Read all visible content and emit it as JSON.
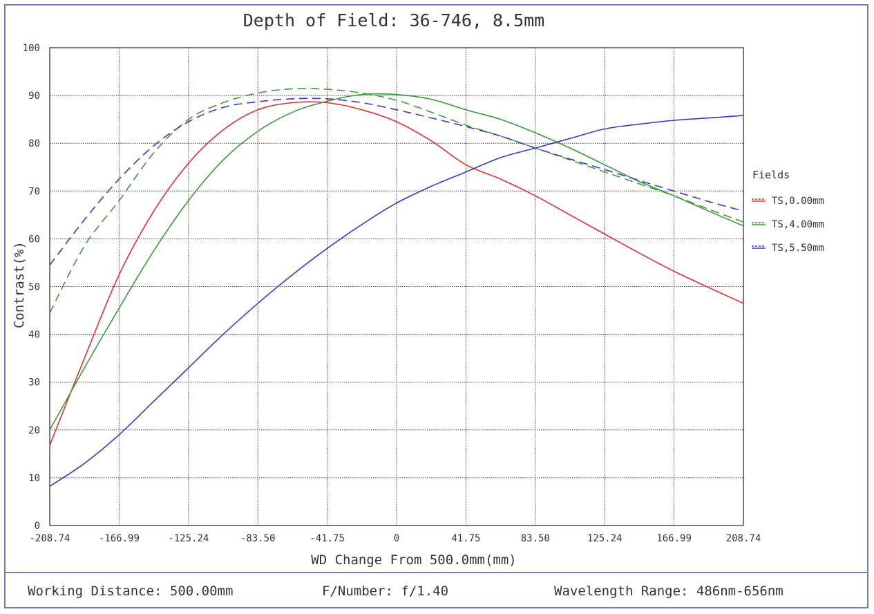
{
  "chart_data": {
    "type": "line",
    "title": "Depth of Field: 36-746, 8.5mm",
    "xlabel": "WD Change From 500.0mm(mm)",
    "ylabel": "Contrast(%)",
    "xlim": [
      -208.74,
      208.74
    ],
    "ylim": [
      0,
      100
    ],
    "x_ticks": [
      "-208.74",
      "-166.99",
      "-125.24",
      "-83.50",
      "-41.75",
      "0",
      "41.75",
      "83.50",
      "125.24",
      "166.99",
      "208.74"
    ],
    "y_ticks": [
      "0",
      "10",
      "20",
      "30",
      "40",
      "50",
      "60",
      "70",
      "80",
      "90",
      "100"
    ],
    "grid": true,
    "legend_title": "Fields",
    "legend_position": "right",
    "series": [
      {
        "name": "TS,0.00mm",
        "color": "#e03030",
        "style": "solid",
        "x": [
          -208.74,
          -187.87,
          -166.99,
          -146.12,
          -125.24,
          -104.37,
          -83.5,
          -62.62,
          -41.75,
          -20.87,
          0,
          20.87,
          41.75,
          62.62,
          83.5,
          104.37,
          125.24,
          146.12,
          166.99,
          187.87,
          208.74
        ],
        "y": [
          16.8,
          35.0,
          52.5,
          65.8,
          75.8,
          82.8,
          87.0,
          88.5,
          88.5,
          87.0,
          84.5,
          80.5,
          75.5,
          72.5,
          69.0,
          65.0,
          61.0,
          57.0,
          53.2,
          49.8,
          46.5
        ]
      },
      {
        "name": "TS,4.00mm",
        "color": "#3a9a3a",
        "style": "solid",
        "x": [
          -208.74,
          -187.87,
          -166.99,
          -146.12,
          -125.24,
          -104.37,
          -83.5,
          -62.62,
          -41.75,
          -20.87,
          0,
          20.87,
          41.75,
          62.62,
          83.5,
          104.37,
          125.24,
          146.12,
          166.99,
          187.87,
          208.74
        ],
        "y": [
          20.0,
          33.0,
          45.5,
          57.5,
          68.0,
          76.5,
          82.5,
          86.5,
          88.8,
          90.2,
          90.2,
          89.2,
          87.0,
          85.0,
          82.2,
          79.0,
          75.5,
          72.0,
          69.0,
          65.8,
          62.7
        ]
      },
      {
        "name": "TS,4.00mm",
        "color": "#3a9a3a",
        "style": "dashed",
        "x": [
          -208.74,
          -187.87,
          -166.99,
          -146.12,
          -125.24,
          -104.37,
          -83.5,
          -62.62,
          -41.75,
          -20.87,
          0,
          20.87,
          41.75,
          62.62,
          83.5,
          104.37,
          125.24,
          146.12,
          166.99,
          187.87,
          208.74
        ],
        "y": [
          44.5,
          58.5,
          68.0,
          78.0,
          85.0,
          88.5,
          90.5,
          91.4,
          91.3,
          90.5,
          89.0,
          86.5,
          83.8,
          81.5,
          79.0,
          76.5,
          74.0,
          71.5,
          69.0,
          66.2,
          63.5
        ]
      },
      {
        "name": "TS,5.50mm",
        "color": "#3838c8",
        "style": "solid",
        "x": [
          -208.74,
          -187.87,
          -166.99,
          -146.12,
          -125.24,
          -104.37,
          -83.5,
          -62.62,
          -41.75,
          -20.87,
          0,
          20.87,
          41.75,
          62.62,
          83.5,
          104.37,
          125.24,
          146.12,
          166.99,
          187.87,
          208.74
        ],
        "y": [
          8.2,
          13.0,
          19.0,
          26.0,
          33.0,
          40.0,
          46.5,
          52.5,
          58.0,
          63.0,
          67.5,
          71.0,
          74.0,
          77.0,
          79.0,
          81.0,
          83.0,
          84.0,
          84.8,
          85.3,
          85.8
        ]
      },
      {
        "name": "TS,5.50mm",
        "color": "#3838c8",
        "style": "dashed",
        "x": [
          -208.74,
          -187.87,
          -166.99,
          -146.12,
          -125.24,
          -104.37,
          -83.5,
          -62.62,
          -41.75,
          -20.87,
          0,
          20.87,
          41.75,
          62.62,
          83.5,
          104.37,
          125.24,
          146.12,
          166.99,
          187.87,
          208.74
        ],
        "y": [
          54.5,
          64.0,
          72.5,
          79.5,
          84.5,
          87.5,
          88.7,
          89.3,
          89.3,
          88.5,
          87.0,
          85.3,
          83.5,
          81.5,
          79.0,
          76.7,
          74.5,
          72.2,
          70.0,
          67.8,
          65.8
        ]
      }
    ],
    "legend": [
      {
        "label": "TS,0.00mm",
        "color": "#e03030"
      },
      {
        "label": "TS,4.00mm",
        "color": "#3a9a3a"
      },
      {
        "label": "TS,5.50mm",
        "color": "#3838c8"
      }
    ]
  },
  "footer": {
    "working_distance": "Working Distance: 500.00mm",
    "f_number": "F/Number: f/1.40",
    "wavelength": "Wavelength Range: 486nm-656nm"
  }
}
